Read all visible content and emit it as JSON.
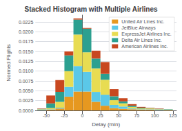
{
  "chart_data": {
    "type": "histogram",
    "title": "Stacked Histogram with Multiple Airlines",
    "xlabel": "Delay (min)",
    "ylabel": "Normed Flights",
    "bins": [
      -62.5,
      -50,
      -37.5,
      -25,
      -12.5,
      0,
      12.5,
      25,
      37.5,
      50,
      62.5,
      75,
      87.5,
      100,
      112.5,
      125
    ],
    "series": [
      {
        "name": "United Air Lines Inc.",
        "color": "#e69820",
        "values": [
          0.0001,
          0.0002,
          0.0005,
          0.0035,
          0.0048,
          0.0048,
          0.0022,
          0.0012,
          0.0006,
          0.0004,
          0.0003,
          0.0002,
          0.0002,
          0.0001,
          0.0001
        ]
      },
      {
        "name": "JetBlue Airways",
        "color": "#5bc8e8",
        "values": [
          0.0001,
          0.0001,
          0.0002,
          0.0025,
          0.0065,
          0.005,
          0.0025,
          0.0028,
          0.0008,
          0.0006,
          0.0002,
          0.0001,
          0.0001,
          0.0001,
          0.0
        ]
      },
      {
        "name": "ExpressJet Airlines Inc.",
        "color": "#e8dc52",
        "values": [
          0.0001,
          0.0003,
          0.0015,
          0.004,
          0.008,
          0.005,
          0.006,
          0.0038,
          0.0012,
          0.0008,
          0.0004,
          0.0002,
          0.0002,
          0.0001,
          0.0001
        ]
      },
      {
        "name": "Delta Air Lines Inc.",
        "color": "#2ca090",
        "values": [
          0.0001,
          0.0012,
          0.0025,
          0.004,
          0.0038,
          0.006,
          0.0025,
          0.0015,
          0.001,
          0.0005,
          0.0003,
          0.0002,
          0.0001,
          0.0001,
          0.0001
        ]
      },
      {
        "name": "American Airlines Inc.",
        "color": "#c84820",
        "values": [
          0.0001,
          0.002,
          0.003,
          0.001,
          0.0003,
          0.0002,
          0.002,
          0.003,
          0.0018,
          0.0008,
          0.0004,
          0.0002,
          0.0001,
          0.0001,
          0.0
        ]
      }
    ],
    "stacked": true,
    "xlim": [
      -65,
      130
    ],
    "xticks": [
      -50,
      -25,
      0,
      25,
      50,
      75,
      100,
      125
    ],
    "ylim": [
      0,
      0.02425
    ],
    "yticks": [
      {
        "value": 0,
        "label": "0.0000"
      },
      0.0025,
      {
        "value": 0.005,
        "label": "0.0050"
      },
      0.0075,
      {
        "value": 0.01,
        "label": "0.0100"
      },
      0.0125,
      {
        "value": 0.015,
        "label": "0.0150"
      },
      0.0175,
      {
        "value": 0.02,
        "label": "0.0200"
      },
      0.0225
    ],
    "grid": true,
    "legend": "upper right"
  }
}
